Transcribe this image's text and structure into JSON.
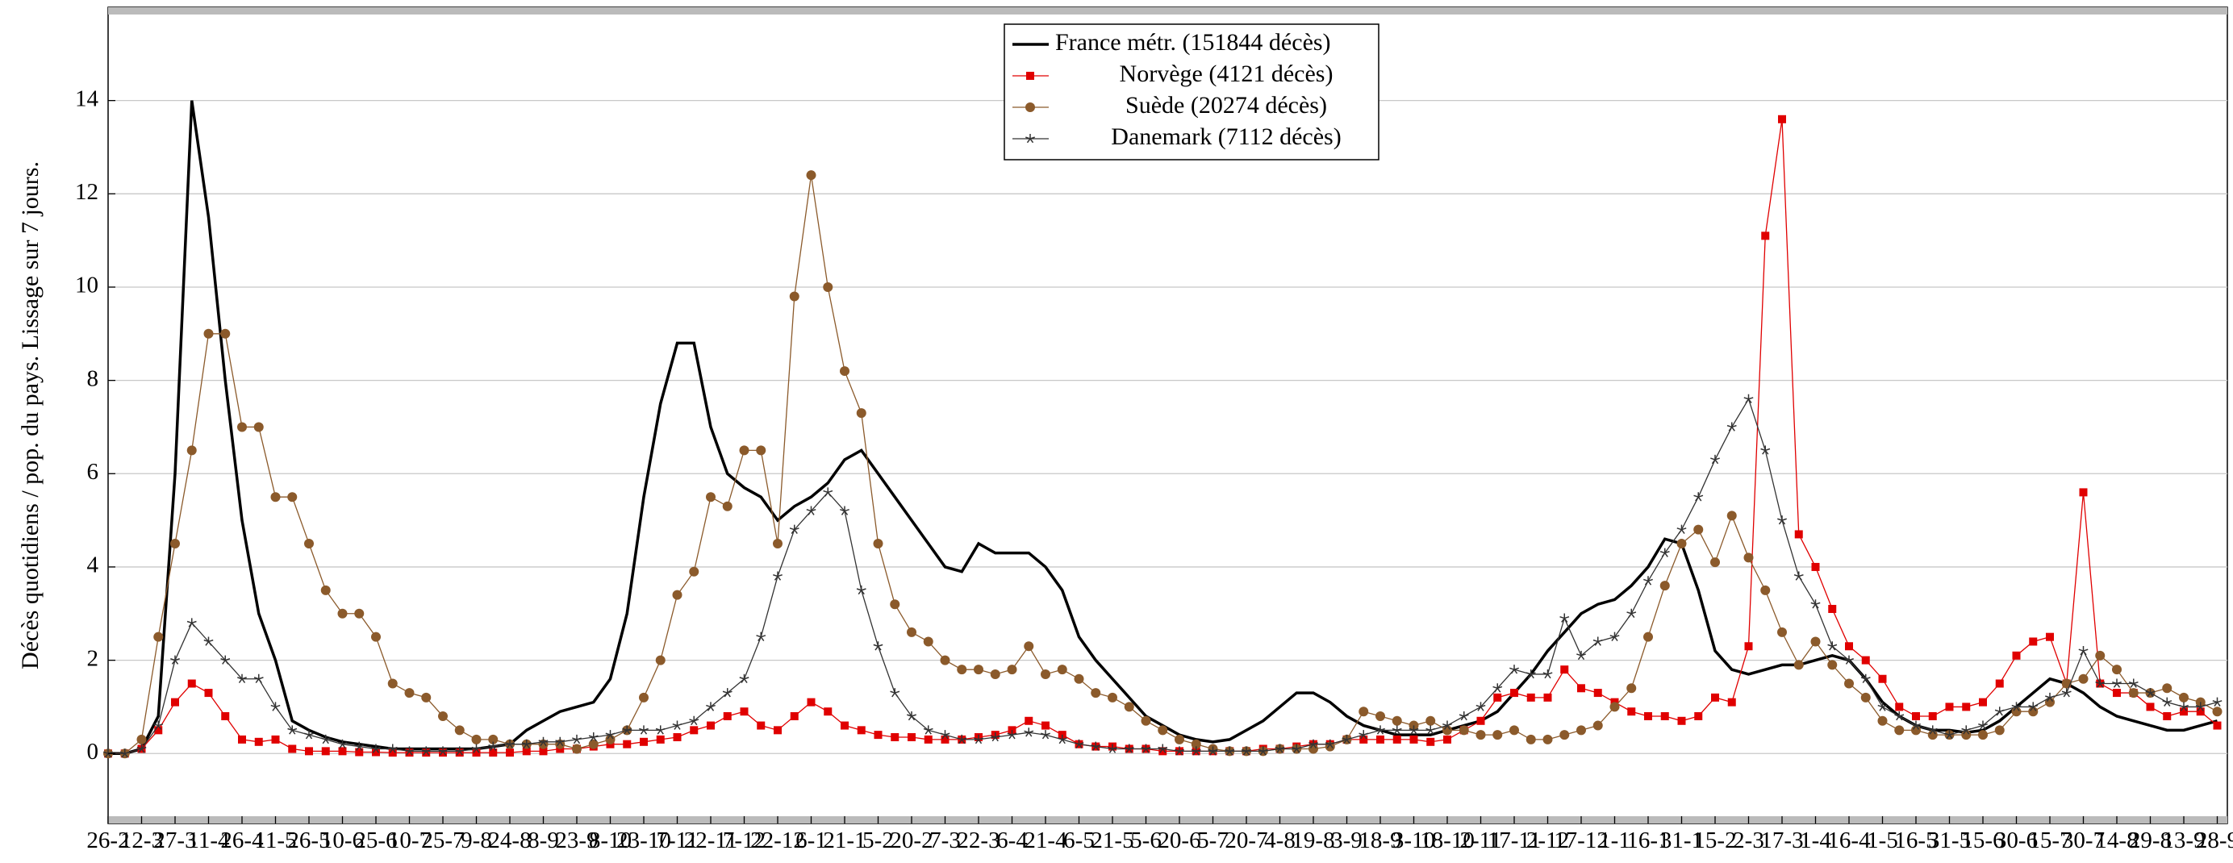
{
  "chart_data": {
    "type": "line",
    "y_label": "Décès quotidiens / pop. du pays. Lissage sur 7 jours.",
    "categories": [
      "26-2",
      null,
      "12-3",
      null,
      "27-3",
      null,
      "11-4",
      null,
      "26-4",
      null,
      "11-5",
      null,
      "26-5",
      null,
      "10-6",
      null,
      "25-6",
      null,
      "10-7",
      null,
      "25-7",
      null,
      "9-8",
      null,
      "24-8",
      null,
      "8-9",
      null,
      "23-9",
      null,
      "8-10",
      null,
      "23-10",
      null,
      "7-11",
      null,
      "22-11",
      null,
      "7-12",
      null,
      "22-12",
      null,
      "6-1",
      null,
      "21-1",
      null,
      "5-2",
      null,
      "20-2",
      null,
      "7-3",
      null,
      "22-3",
      null,
      "6-4",
      null,
      "21-4",
      null,
      "6-5",
      null,
      "21-5",
      null,
      "5-6",
      null,
      "20-6",
      null,
      "5-7",
      null,
      "20-7",
      null,
      "4-8",
      null,
      "19-8",
      null,
      "3-9",
      null,
      "18-9",
      null,
      "3-10",
      null,
      "18-10",
      null,
      "2-11",
      null,
      "17-11",
      null,
      "2-12",
      null,
      "17-12",
      null,
      "1-1",
      null,
      "16-1",
      null,
      "31-1",
      null,
      "15-2",
      null,
      "2-3",
      null,
      "17-3",
      null,
      "1-4",
      null,
      "16-4",
      null,
      "1-5",
      null,
      "16-5",
      null,
      "31-5",
      null,
      "15-6",
      null,
      "30-6",
      null,
      "15-7",
      null,
      "30-7",
      null,
      "14-8",
      null,
      "29-8",
      null,
      "13-9",
      null,
      "28-9"
    ],
    "series": [
      {
        "name": "France métr. (151844 décès)",
        "color": "#000000",
        "marker": "none",
        "values": [
          0,
          0,
          0.1,
          0.8,
          6,
          14,
          11.5,
          8,
          5,
          3,
          2,
          0.7,
          0.5,
          0.35,
          0.25,
          0.2,
          0.15,
          0.1,
          0.1,
          0.1,
          0.1,
          0.1,
          0.1,
          0.15,
          0.2,
          0.5,
          0.7,
          0.9,
          1.0,
          1.1,
          1.6,
          3,
          5.5,
          7.5,
          8.8,
          8.8,
          7,
          6.0,
          5.7,
          5.5,
          5.0,
          5.3,
          5.5,
          5.8,
          6.3,
          6.5,
          6.0,
          5.5,
          5.0,
          4.5,
          4.0,
          3.9,
          4.5,
          4.3,
          4.3,
          4.3,
          4.0,
          3.5,
          2.5,
          2.0,
          1.6,
          1.2,
          0.8,
          0.6,
          0.4,
          0.3,
          0.25,
          0.3,
          0.5,
          0.7,
          1.0,
          1.3,
          1.3,
          1.1,
          0.8,
          0.6,
          0.5,
          0.4,
          0.4,
          0.4,
          0.5,
          0.6,
          0.7,
          0.9,
          1.3,
          1.7,
          2.2,
          2.6,
          3.0,
          3.2,
          3.3,
          3.6,
          4.0,
          4.6,
          4.5,
          3.5,
          2.2,
          1.8,
          1.7,
          1.8,
          1.9,
          1.9,
          2.0,
          2.1,
          2.0,
          1.6,
          1.1,
          0.8,
          0.6,
          0.5,
          0.5,
          0.45,
          0.5,
          0.7,
          1.0,
          1.3,
          1.6,
          1.5,
          1.3,
          1.0,
          0.8,
          0.7,
          0.6,
          0.5,
          0.5,
          0.6,
          0.7
        ]
      },
      {
        "name": "Norvège (4121 décès)",
        "color": "#e00000",
        "marker": "square",
        "values": [
          0,
          0,
          0.1,
          0.5,
          1.1,
          1.5,
          1.3,
          0.8,
          0.3,
          0.25,
          0.3,
          0.1,
          0.05,
          0.05,
          0.05,
          0.03,
          0.03,
          0.02,
          0.02,
          0.02,
          0.02,
          0.02,
          0.02,
          0.02,
          0.02,
          0.05,
          0.05,
          0.1,
          0.1,
          0.15,
          0.2,
          0.2,
          0.25,
          0.3,
          0.35,
          0.5,
          0.6,
          0.8,
          0.9,
          0.6,
          0.5,
          0.8,
          1.1,
          0.9,
          0.6,
          0.5,
          0.4,
          0.35,
          0.35,
          0.3,
          0.3,
          0.3,
          0.35,
          0.4,
          0.5,
          0.7,
          0.6,
          0.4,
          0.2,
          0.15,
          0.15,
          0.1,
          0.1,
          0.05,
          0.05,
          0.05,
          0.05,
          0.05,
          0.05,
          0.1,
          0.1,
          0.15,
          0.2,
          0.2,
          0.3,
          0.3,
          0.3,
          0.3,
          0.3,
          0.25,
          0.3,
          0.5,
          0.7,
          1.2,
          1.3,
          1.2,
          1.2,
          1.8,
          1.4,
          1.3,
          1.1,
          0.9,
          0.8,
          0.8,
          0.7,
          0.8,
          1.2,
          1.1,
          2.3,
          11.1,
          13.6,
          4.7,
          4.0,
          3.1,
          2.3,
          2.0,
          1.6,
          1.0,
          0.8,
          0.8,
          1.0,
          1.0,
          1.1,
          1.5,
          2.1,
          2.4,
          2.5,
          1.5,
          5.6,
          1.5,
          1.3,
          1.3,
          1.0,
          0.8,
          0.9,
          0.9,
          0.6
        ]
      },
      {
        "name": "Suède (20274 décès)",
        "color": "#8b5a2b",
        "marker": "circle",
        "values": [
          0,
          0,
          0.3,
          2.5,
          4.5,
          6.5,
          9,
          9,
          7,
          7,
          5.5,
          5.5,
          4.5,
          3.5,
          3,
          3,
          2.5,
          1.5,
          1.3,
          1.2,
          0.8,
          0.5,
          0.3,
          0.3,
          0.2,
          0.2,
          0.2,
          0.2,
          0.1,
          0.2,
          0.3,
          0.5,
          1.2,
          2.0,
          3.4,
          3.9,
          5.5,
          5.3,
          6.5,
          6.5,
          4.5,
          9.8,
          12.4,
          10,
          8.2,
          7.3,
          4.5,
          3.2,
          2.6,
          2.4,
          2.0,
          1.8,
          1.8,
          1.7,
          1.8,
          2.3,
          1.7,
          1.8,
          1.6,
          1.3,
          1.2,
          1.0,
          0.7,
          0.5,
          0.3,
          0.2,
          0.1,
          0.05,
          0.05,
          0.05,
          0.1,
          0.1,
          0.1,
          0.15,
          0.3,
          0.9,
          0.8,
          0.7,
          0.6,
          0.7,
          0.5,
          0.5,
          0.4,
          0.4,
          0.5,
          0.3,
          0.3,
          0.4,
          0.5,
          0.6,
          1.0,
          1.4,
          2.5,
          3.6,
          4.5,
          4.8,
          4.1,
          5.1,
          4.2,
          3.5,
          2.6,
          1.9,
          2.4,
          1.9,
          1.5,
          1.2,
          0.7,
          0.5,
          0.5,
          0.4,
          0.4,
          0.4,
          0.4,
          0.5,
          0.9,
          0.9,
          1.1,
          1.5,
          1.6,
          2.1,
          1.8,
          1.3,
          1.3,
          1.4,
          1.2,
          1.1,
          0.9
        ]
      },
      {
        "name": "Danemark (7112 décès)",
        "color": "#333333",
        "marker": "star",
        "values": [
          0,
          0,
          0.1,
          0.6,
          2.0,
          2.8,
          2.4,
          2.0,
          1.6,
          1.6,
          1.0,
          0.5,
          0.4,
          0.3,
          0.2,
          0.15,
          0.1,
          0.1,
          0.05,
          0.05,
          0.05,
          0.05,
          0.1,
          0.15,
          0.2,
          0.2,
          0.25,
          0.25,
          0.3,
          0.35,
          0.4,
          0.5,
          0.5,
          0.5,
          0.6,
          0.7,
          1.0,
          1.3,
          1.6,
          2.5,
          3.8,
          4.8,
          5.2,
          5.6,
          5.2,
          3.5,
          2.3,
          1.3,
          0.8,
          0.5,
          0.4,
          0.3,
          0.3,
          0.35,
          0.4,
          0.45,
          0.4,
          0.3,
          0.2,
          0.15,
          0.1,
          0.1,
          0.1,
          0.1,
          0.05,
          0.05,
          0.05,
          0.05,
          0.05,
          0.05,
          0.1,
          0.1,
          0.2,
          0.2,
          0.3,
          0.4,
          0.5,
          0.5,
          0.5,
          0.5,
          0.6,
          0.8,
          1.0,
          1.4,
          1.8,
          1.7,
          1.7,
          2.9,
          2.1,
          2.4,
          2.5,
          3.0,
          3.7,
          4.3,
          4.8,
          5.5,
          6.3,
          7.0,
          7.6,
          6.5,
          5.0,
          3.8,
          3.2,
          2.3,
          2.0,
          1.6,
          1.0,
          0.8,
          0.6,
          0.5,
          0.4,
          0.5,
          0.6,
          0.9,
          1.0,
          1.0,
          1.2,
          1.3,
          2.2,
          1.5,
          1.5,
          1.5,
          1.3,
          1.1,
          1.0,
          1.0,
          1.1
        ]
      }
    ],
    "ylim": [
      -1.5,
      16
    ],
    "yticks": [
      0,
      2,
      4,
      6,
      8,
      10,
      12,
      14
    ],
    "grid": true,
    "legend": "upper center"
  }
}
